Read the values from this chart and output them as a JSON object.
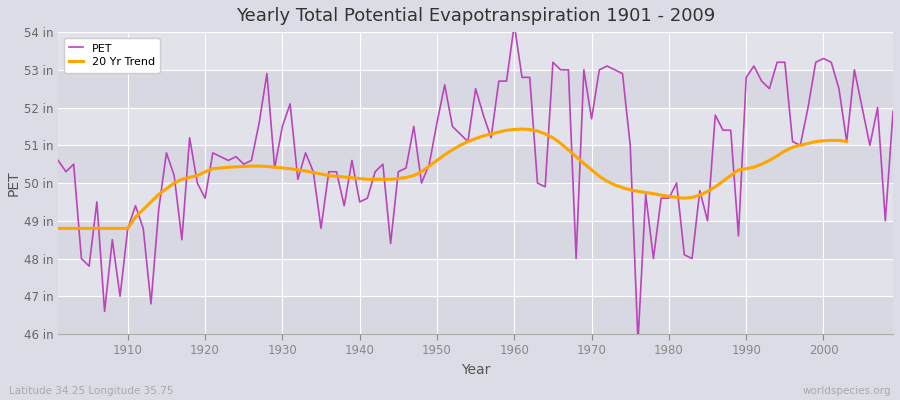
{
  "title": "Yearly Total Potential Evapotranspiration 1901 - 2009",
  "xlabel": "Year",
  "ylabel": "PET",
  "subtitle_left": "Latitude 34.25 Longitude 35.75",
  "watermark": "worldspecies.org",
  "ylim": [
    46,
    54
  ],
  "xlim": [
    1901,
    2009
  ],
  "ytick_labels": [
    "46 in",
    "47 in",
    "48 in",
    "49 in",
    "50 in",
    "51 in",
    "52 in",
    "53 in",
    "54 in"
  ],
  "ytick_values": [
    46,
    47,
    48,
    49,
    50,
    51,
    52,
    53,
    54
  ],
  "xtick_values": [
    1910,
    1920,
    1930,
    1940,
    1950,
    1960,
    1970,
    1980,
    1990,
    2000
  ],
  "pet_color": "#BB44BB",
  "trend_color": "#FFA500",
  "background_color": "#E0E0E8",
  "plot_bg_color": "#DCDCE4",
  "grid_color": "#FFFFFF",
  "pet_data": [
    [
      1901,
      50.6
    ],
    [
      1902,
      50.3
    ],
    [
      1903,
      50.5
    ],
    [
      1904,
      48.0
    ],
    [
      1905,
      47.8
    ],
    [
      1906,
      49.5
    ],
    [
      1907,
      46.6
    ],
    [
      1908,
      48.5
    ],
    [
      1909,
      47.0
    ],
    [
      1910,
      48.8
    ],
    [
      1911,
      49.4
    ],
    [
      1912,
      48.8
    ],
    [
      1913,
      46.8
    ],
    [
      1914,
      49.3
    ],
    [
      1915,
      50.8
    ],
    [
      1916,
      50.2
    ],
    [
      1917,
      48.5
    ],
    [
      1918,
      51.2
    ],
    [
      1919,
      50.0
    ],
    [
      1920,
      49.6
    ],
    [
      1921,
      50.8
    ],
    [
      1922,
      50.7
    ],
    [
      1923,
      50.6
    ],
    [
      1924,
      50.7
    ],
    [
      1925,
      50.5
    ],
    [
      1926,
      50.6
    ],
    [
      1927,
      51.6
    ],
    [
      1928,
      52.9
    ],
    [
      1929,
      50.4
    ],
    [
      1930,
      51.5
    ],
    [
      1931,
      52.1
    ],
    [
      1932,
      50.1
    ],
    [
      1933,
      50.8
    ],
    [
      1934,
      50.3
    ],
    [
      1935,
      48.8
    ],
    [
      1936,
      50.3
    ],
    [
      1937,
      50.3
    ],
    [
      1938,
      49.4
    ],
    [
      1939,
      50.6
    ],
    [
      1940,
      49.5
    ],
    [
      1941,
      49.6
    ],
    [
      1942,
      50.3
    ],
    [
      1943,
      50.5
    ],
    [
      1944,
      48.4
    ],
    [
      1945,
      50.3
    ],
    [
      1946,
      50.4
    ],
    [
      1947,
      51.5
    ],
    [
      1948,
      50.0
    ],
    [
      1949,
      50.5
    ],
    [
      1950,
      51.6
    ],
    [
      1951,
      52.6
    ],
    [
      1952,
      51.5
    ],
    [
      1953,
      51.3
    ],
    [
      1954,
      51.1
    ],
    [
      1955,
      52.5
    ],
    [
      1956,
      51.8
    ],
    [
      1957,
      51.2
    ],
    [
      1958,
      52.7
    ],
    [
      1959,
      52.7
    ],
    [
      1960,
      54.2
    ],
    [
      1961,
      52.8
    ],
    [
      1962,
      52.8
    ],
    [
      1963,
      50.0
    ],
    [
      1964,
      49.9
    ],
    [
      1965,
      53.2
    ],
    [
      1966,
      53.0
    ],
    [
      1967,
      53.0
    ],
    [
      1968,
      48.0
    ],
    [
      1969,
      53.0
    ],
    [
      1970,
      51.7
    ],
    [
      1971,
      53.0
    ],
    [
      1972,
      53.1
    ],
    [
      1973,
      53.0
    ],
    [
      1974,
      52.9
    ],
    [
      1975,
      51.0
    ],
    [
      1976,
      45.8
    ],
    [
      1977,
      49.7
    ],
    [
      1978,
      48.0
    ],
    [
      1979,
      49.6
    ],
    [
      1980,
      49.6
    ],
    [
      1981,
      50.0
    ],
    [
      1982,
      48.1
    ],
    [
      1983,
      48.0
    ],
    [
      1984,
      49.8
    ],
    [
      1985,
      49.0
    ],
    [
      1986,
      51.8
    ],
    [
      1987,
      51.4
    ],
    [
      1988,
      51.4
    ],
    [
      1989,
      48.6
    ],
    [
      1990,
      52.8
    ],
    [
      1991,
      53.1
    ],
    [
      1992,
      52.7
    ],
    [
      1993,
      52.5
    ],
    [
      1994,
      53.2
    ],
    [
      1995,
      53.2
    ],
    [
      1996,
      51.1
    ],
    [
      1997,
      51.0
    ],
    [
      1998,
      52.0
    ],
    [
      1999,
      53.2
    ],
    [
      2000,
      53.3
    ],
    [
      2001,
      53.2
    ],
    [
      2002,
      52.5
    ],
    [
      2003,
      51.1
    ],
    [
      2004,
      53.0
    ],
    [
      2005,
      52.0
    ],
    [
      2006,
      51.0
    ],
    [
      2007,
      52.0
    ],
    [
      2008,
      49.0
    ],
    [
      2009,
      51.9
    ]
  ],
  "trend_data": [
    [
      1901,
      48.8
    ],
    [
      1910,
      48.8
    ],
    [
      1911,
      49.1
    ],
    [
      1912,
      49.3
    ],
    [
      1913,
      49.5
    ],
    [
      1914,
      49.7
    ],
    [
      1915,
      49.85
    ],
    [
      1916,
      50.0
    ],
    [
      1917,
      50.1
    ],
    [
      1918,
      50.15
    ],
    [
      1919,
      50.2
    ],
    [
      1920,
      50.3
    ],
    [
      1921,
      50.38
    ],
    [
      1922,
      50.4
    ],
    [
      1923,
      50.42
    ],
    [
      1924,
      50.43
    ],
    [
      1925,
      50.44
    ],
    [
      1926,
      50.45
    ],
    [
      1927,
      50.45
    ],
    [
      1928,
      50.44
    ],
    [
      1929,
      50.42
    ],
    [
      1930,
      50.4
    ],
    [
      1931,
      50.38
    ],
    [
      1932,
      50.35
    ],
    [
      1933,
      50.32
    ],
    [
      1934,
      50.28
    ],
    [
      1935,
      50.24
    ],
    [
      1936,
      50.2
    ],
    [
      1937,
      50.18
    ],
    [
      1938,
      50.16
    ],
    [
      1939,
      50.14
    ],
    [
      1940,
      50.12
    ],
    [
      1941,
      50.1
    ],
    [
      1942,
      50.1
    ],
    [
      1943,
      50.1
    ],
    [
      1944,
      50.1
    ],
    [
      1945,
      50.12
    ],
    [
      1946,
      50.15
    ],
    [
      1947,
      50.2
    ],
    [
      1948,
      50.3
    ],
    [
      1949,
      50.45
    ],
    [
      1950,
      50.6
    ],
    [
      1951,
      50.75
    ],
    [
      1952,
      50.88
    ],
    [
      1953,
      51.0
    ],
    [
      1954,
      51.1
    ],
    [
      1955,
      51.18
    ],
    [
      1956,
      51.25
    ],
    [
      1957,
      51.3
    ],
    [
      1958,
      51.35
    ],
    [
      1959,
      51.4
    ],
    [
      1960,
      51.42
    ],
    [
      1961,
      51.43
    ],
    [
      1962,
      51.42
    ],
    [
      1963,
      51.38
    ],
    [
      1964,
      51.3
    ],
    [
      1965,
      51.2
    ],
    [
      1966,
      51.05
    ],
    [
      1967,
      50.88
    ],
    [
      1968,
      50.7
    ],
    [
      1969,
      50.52
    ],
    [
      1970,
      50.35
    ],
    [
      1971,
      50.18
    ],
    [
      1972,
      50.05
    ],
    [
      1973,
      49.95
    ],
    [
      1974,
      49.88
    ],
    [
      1975,
      49.82
    ],
    [
      1976,
      49.78
    ],
    [
      1977,
      49.75
    ],
    [
      1978,
      49.72
    ],
    [
      1979,
      49.68
    ],
    [
      1980,
      49.65
    ],
    [
      1981,
      49.62
    ],
    [
      1982,
      49.6
    ],
    [
      1983,
      49.62
    ],
    [
      1984,
      49.68
    ],
    [
      1985,
      49.78
    ],
    [
      1986,
      49.9
    ],
    [
      1987,
      50.05
    ],
    [
      1988,
      50.2
    ],
    [
      1989,
      50.35
    ],
    [
      1990,
      50.38
    ],
    [
      1991,
      50.42
    ],
    [
      1992,
      50.5
    ],
    [
      1993,
      50.6
    ],
    [
      1994,
      50.72
    ],
    [
      1995,
      50.85
    ],
    [
      1996,
      50.95
    ],
    [
      1997,
      51.0
    ],
    [
      1998,
      51.05
    ],
    [
      1999,
      51.1
    ],
    [
      2000,
      51.12
    ],
    [
      2001,
      51.13
    ],
    [
      2002,
      51.13
    ],
    [
      2003,
      51.1
    ]
  ]
}
